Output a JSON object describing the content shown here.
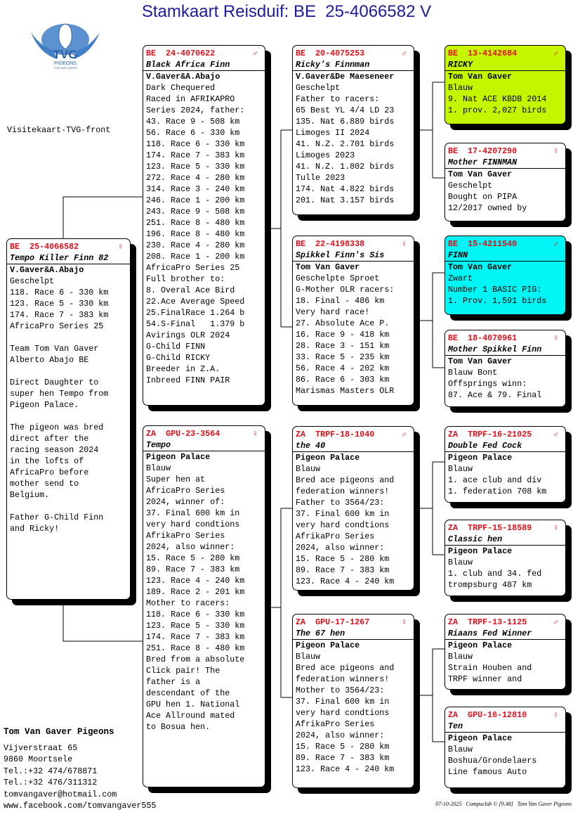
{
  "title": "Stamkaart Reisduif: BE  25-4066582 V",
  "logo": {
    "text": "TVG",
    "subtext": "PIGEONS",
    "small": "TOM VAN GAVER",
    "color": "#3f7fc7"
  },
  "card_caption": "Visitekaart-TVG-front",
  "colors": {
    "ring": "#e0101a",
    "title": "#1c1c9c",
    "ricky_bg": "#c6f500",
    "finn_bg": "#00f5f5"
  },
  "cards": [
    {
      "id": "subject",
      "country": "BE",
      "ring": "25-4066582",
      "sex": "♀",
      "name": "Tempo Killer Finn 82",
      "lines": [
        "V.Gaver&A.Abajo",
        "Geschelpt",
        "118. Race 6 - 330 km",
        "123. Race 5 - 330 km",
        "174. Race 7 - 383 km",
        "AfricaPro Series 25",
        "",
        "Team Tom Van Gaver",
        "Alberto Abajo BE",
        "",
        "Direct Daughter to",
        "super hen Tempo from",
        "Pigeon Palace.",
        "",
        "The pigeon was bred",
        "direct after the",
        "racing season 2024",
        "in the lofts of",
        "AfricaPro before",
        "mother send to",
        "Belgium.",
        "",
        "Father G-Child Finn",
        "and Ricky!"
      ]
    },
    {
      "id": "f",
      "country": "BE",
      "ring": "24-4070622",
      "sex": "♂",
      "name": "Black Africa Finn",
      "lines": [
        "V.Gaver&A.Abajo",
        "Dark Chequered",
        "Raced in AFRIKAPRO",
        "Series 2024, father:",
        "43. Race 9 - 508 km",
        "56. Race 6 - 330 km",
        "118. Race 6 - 330 km",
        "174. Race 7 - 383 km",
        "123. Race 5 - 330 km",
        "272. Race 4 - 280 km",
        "314. Race 3 - 240 km",
        "246. Race 1 - 200 km",
        "243. Race 9 - 508 km",
        "251. Race 8 - 480 km",
        "196. Race 8 - 480 km",
        "230. Race 4 - 280 km",
        "208. Race 1 - 200 km",
        "AfricaPro Series 25",
        "Full brother to:",
        "8. Overal Ace Bird",
        "22.Ace Average Speed",
        "25.FinalRace 1.264 b",
        "54.S-Final   1.379 b",
        "Avirings OLR 2024",
        "G-Child FINN",
        "G-Child RICKY",
        "Breeder in Z.A.",
        "Inbreed FINN PAIR"
      ]
    },
    {
      "id": "m",
      "country": "ZA",
      "ring": "GPU-23-3564",
      "sex": "♀",
      "name": "Tempo",
      "lines": [
        "Pigeon Palace",
        "Blauw",
        "Super hen at",
        "AfricaPro Series",
        "2024, winner of:",
        "37. Final 600 km in",
        "very hard condtions",
        "AfrikaPro Series",
        "2024, also winner:",
        "15. Race 5 - 280 km",
        "89. Race 7 - 383 km",
        "123. Race 4 - 240 km",
        "189. Race 2 - 201 km",
        "Mother to racers:",
        "118. Race 6 - 330 km",
        "123. Race 5 - 330 km",
        "174. Race 7 - 383 km",
        "251. Race 8 - 480 km",
        "Bred from a absolute",
        "Click pair! The",
        "father is a",
        "descendant of the",
        "GPU hen 1. National",
        "Ace Allround mated",
        "to Bosua hen."
      ]
    },
    {
      "id": "ff",
      "country": "BE",
      "ring": "20-4075253",
      "sex": "♂",
      "name": "Ricky's Finnman",
      "lines": [
        "V.Gaver&De Maeseneer",
        "Geschelpt",
        "Father to racers:",
        "65 Best YL 4/4 LD 23",
        "135. Nat 6.889 birds",
        "Limoges II 2024",
        "41. N.Z. 2.701 birds",
        "Limoges 2023",
        "41. N.Z. 1.802 birds",
        "Tulle 2023",
        "174. Nat 4.822 birds",
        "201. Nat 3.157 birds"
      ]
    },
    {
      "id": "fm",
      "country": "BE",
      "ring": "22-4198338",
      "sex": "♀",
      "name": "Spikkel Finn's Sis",
      "lines": [
        "Tom Van Gaver",
        "Geschelpte Sproet",
        "G-Mother OLR racers:",
        "18. Final - 486 km",
        "Very hard race!",
        "27. Absolute Ace P.",
        "16. Race 9 - 418 km",
        "28. Race 3 - 151 km",
        "33. Race 5 - 235 km",
        "56. Race 4 - 202 km",
        "86. Race 6 - 303 km",
        "Marismas Masters OLR"
      ]
    },
    {
      "id": "mf",
      "country": "ZA",
      "ring": "TRPF-18-1040",
      "sex": "♂",
      "name": "the 40",
      "lines": [
        "Pigeon Palace",
        "Blauw",
        "Bred ace pigeons and",
        "federation winners!",
        "Father to 3564/23:",
        "37. Final 600 km in",
        "very hard condtions",
        "AfrikaPro Series",
        "2024, also winner:",
        "15. Race 5 - 280 km",
        "89. Race 7 - 383 km",
        "123. Race 4 - 240 km"
      ]
    },
    {
      "id": "mm",
      "country": "ZA",
      "ring": "GPU-17-1267",
      "sex": "♀",
      "name": "The 67 hen",
      "lines": [
        "Pigeon Palace",
        "Blauw",
        "Bred ace pigeons and",
        "federation winners!",
        "Mother to 3564/23:",
        "37. Final 600 km in",
        "very hard condtions",
        "AfrikaPro Series",
        "2024, also winner:",
        "15. Race 5 - 280 km",
        "89. Race 7 - 383 km",
        "123. Race 4 - 240 km"
      ]
    },
    {
      "id": "fff",
      "country": "BE",
      "ring": "13-4142684",
      "sex": "♂",
      "name": "RICKY",
      "bg": "#c6f500",
      "lines": [
        "Tom Van Gaver",
        "Blauw",
        "9. Nat ACE KBDB 2014",
        "1. prov. 2,027 birds"
      ]
    },
    {
      "id": "ffm",
      "country": "BE",
      "ring": "17-4207290",
      "sex": "♀",
      "name": "Mother FINNMAN",
      "lines": [
        "Tom Van Gaver",
        "Geschelpt",
        "Bought on PIPA",
        "12/2017 owned by"
      ]
    },
    {
      "id": "fmf",
      "country": "BE",
      "ring": "15-4211540",
      "sex": "♂",
      "name": "FINN",
      "bg": "#00f5f5",
      "lines": [
        "Tom Van Gaver",
        "Zwart",
        "Number 1 BASIC PIG:",
        "1. Prov. 1,591 birds"
      ]
    },
    {
      "id": "fmm",
      "country": "BE",
      "ring": "18-4070961",
      "sex": "♀",
      "name": "Mother Spikkel Finn",
      "lines": [
        "Tom Van Gaver",
        "Blauw Bont",
        "Offsprings winn:",
        "87. Ace & 79. Final"
      ]
    },
    {
      "id": "mff",
      "country": "ZA",
      "ring": "TRPF-16-21025",
      "sex": "♂",
      "name": "Double Fed Cock",
      "lines": [
        "Pigeon Palace",
        "Blauw",
        "1. ace club and div",
        "1. federation 708 km"
      ]
    },
    {
      "id": "mfm",
      "country": "ZA",
      "ring": "TRPF-15-18589",
      "sex": "♀",
      "name": "Classic hen",
      "lines": [
        "Pigeon Palace",
        "Blauw",
        "1. club and 34. fed",
        "trompsburg 487 km"
      ]
    },
    {
      "id": "mmf",
      "country": "ZA",
      "ring": "TRPF-13-1125",
      "sex": "♂",
      "name": "Riaans Fed Winner",
      "lines": [
        "Pigeon Palace",
        "Blauw",
        "Strain Houben and",
        "TRPF winner and"
      ]
    },
    {
      "id": "mmm",
      "country": "ZA",
      "ring": "GPU-16-12810",
      "sex": "♀",
      "name": "Ten",
      "lines": [
        "Pigeon Palace",
        "Blauw",
        "Boshua/Grondelaers",
        "Line famous Auto"
      ]
    }
  ],
  "contact": {
    "name": "Tom Van Gaver Pigeons",
    "lines": [
      "Vijverstraat 65",
      "9860  Moortsele",
      "Tel.:+32 474/678871",
      "Tel.:+32 476/311312",
      "tomvangaver@hotmail.com",
      "www.facebook.com/tomvangaver555"
    ]
  },
  "footer": "07-10-2025   Compuclub © [9.48]   Tom Van Gaver Pigeons"
}
